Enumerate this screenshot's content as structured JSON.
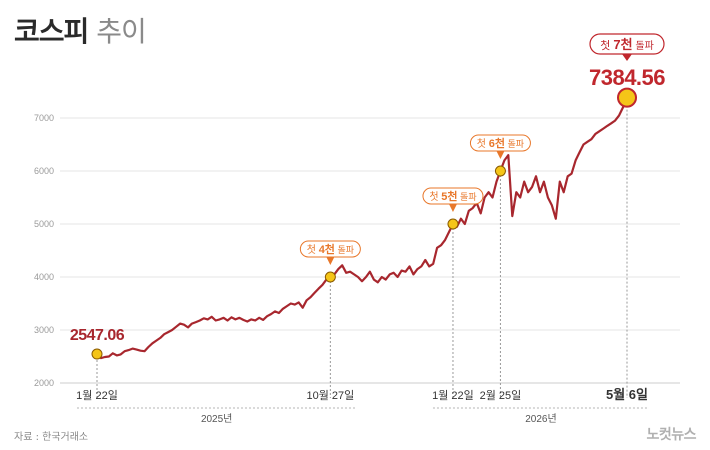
{
  "header": {
    "title_main": "코스피",
    "title_sub": "추이"
  },
  "footer": {
    "source": "자료 : 한국거래소",
    "logo": "노컷뉴스"
  },
  "colors": {
    "line": "#a8272e",
    "marker": "#f5c518",
    "callout": "#e8772a",
    "final": "#c0272d",
    "grid": "#e6e6e6",
    "axis": "#9a9a9a"
  },
  "chart_data": {
    "type": "line",
    "ylim": [
      2000,
      7500
    ],
    "yticks": [
      2000,
      3000,
      4000,
      5000,
      6000,
      7000
    ],
    "x_tick_labels": [
      "1월 22일",
      "10월 27일",
      "1월 22일",
      "2월 25일",
      "5월 6일"
    ],
    "year_labels": [
      "2025년",
      "2026년"
    ],
    "start_value_label": "2547.06",
    "end_value_label": "7384.56",
    "milestones": [
      {
        "label_prefix": "첫",
        "label_num": "4천",
        "label_suffix": "돌파",
        "value": 4000
      },
      {
        "label_prefix": "첫",
        "label_num": "5천",
        "label_suffix": "돌파",
        "value": 5000
      },
      {
        "label_prefix": "첫",
        "label_num": "6천",
        "label_suffix": "돌파",
        "value": 6000
      },
      {
        "label_prefix": "첫",
        "label_num": "7천",
        "label_suffix": "돌파",
        "value": 7384.56
      }
    ],
    "series": [
      {
        "values": [
          2547,
          2470,
          2490,
          2500,
          2560,
          2520,
          2540,
          2600,
          2620,
          2650,
          2630,
          2610,
          2600,
          2680,
          2750,
          2800,
          2850,
          2920,
          2960,
          3000,
          3060,
          3120,
          3100,
          3050,
          3120,
          3150,
          3180,
          3220,
          3200,
          3250,
          3180,
          3200,
          3230,
          3180,
          3240,
          3200,
          3230,
          3190,
          3160,
          3200,
          3180,
          3230,
          3190,
          3260,
          3300,
          3350,
          3320,
          3400,
          3450,
          3500,
          3480,
          3520,
          3420,
          3560,
          3620,
          3700,
          3780,
          3850,
          3950,
          4000,
          4050,
          4150,
          4220,
          4080,
          4100,
          4050,
          4000,
          3920,
          4000,
          4100,
          3950,
          3900,
          4000,
          3950,
          4050,
          4080,
          4000,
          4120,
          4100,
          4200,
          4050,
          4150,
          4200,
          4320,
          4200,
          4250,
          4550,
          4600,
          4700,
          4850,
          5000,
          4950,
          5100,
          5000,
          5250,
          5300,
          5400,
          5200,
          5500,
          5600,
          5500,
          5800,
          6000,
          6200,
          6300,
          5150,
          5600,
          5500,
          5800,
          5600,
          5700,
          5900,
          5600,
          5800,
          5500,
          5350,
          5100,
          5800,
          5600,
          5900,
          5950,
          6200,
          6350,
          6500,
          6550,
          6600,
          6700,
          6750,
          6800,
          6850,
          6900,
          6950,
          7050,
          7200,
          7384.56
        ]
      }
    ]
  }
}
